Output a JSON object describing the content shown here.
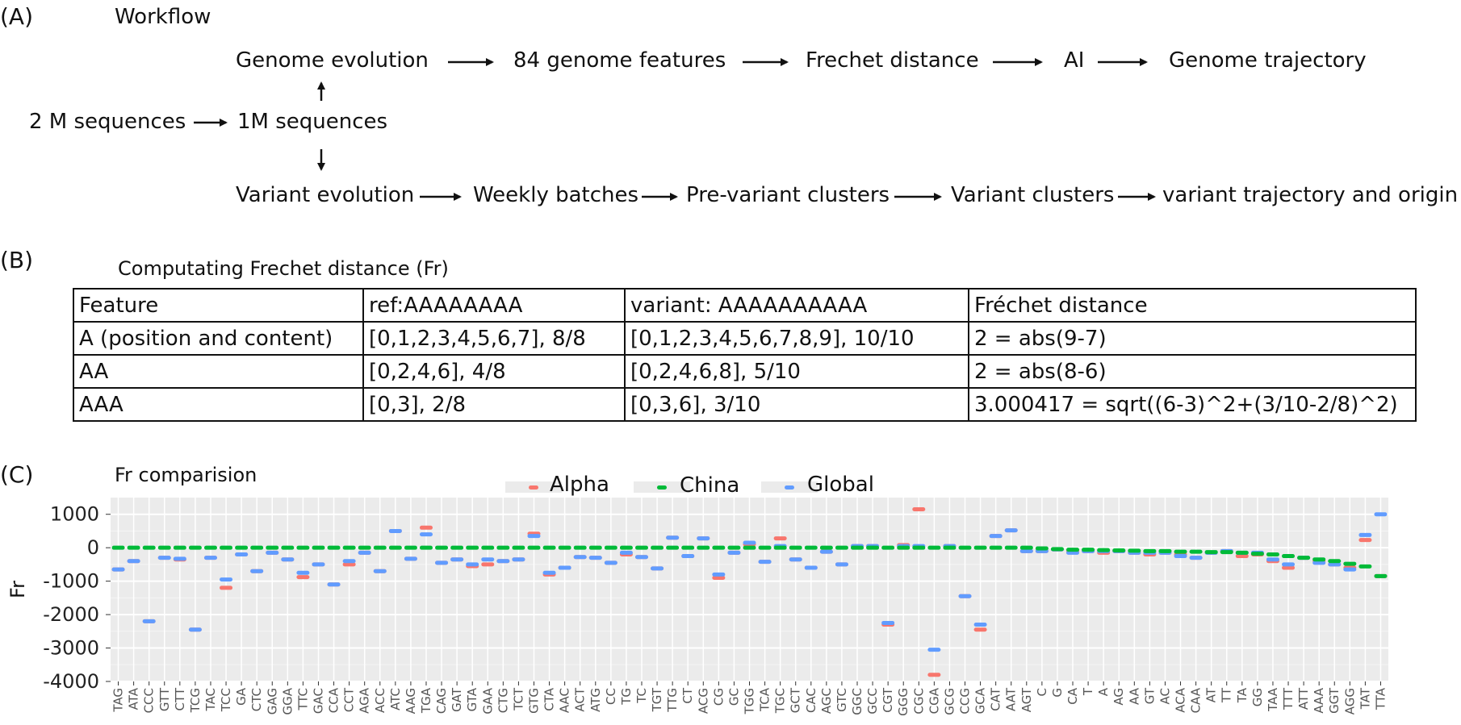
{
  "panelA": {
    "label": "(A)",
    "title": "Workflow",
    "nodes": {
      "two_m": "2 M sequences",
      "one_m": "1M sequences",
      "genome_evolution": "Genome evolution",
      "features84": "84 genome features",
      "frechet": "Frechet distance",
      "ai": "AI",
      "genome_traj": "Genome trajectory",
      "variant_evolution": "Variant evolution",
      "weekly": "Weekly batches",
      "pre_variant": "Pre-variant clusters",
      "variant_clusters": "Variant clusters",
      "variant_traj": "variant trajectory and origin"
    }
  },
  "panelB": {
    "label": "(B)",
    "title": "Computating Frechet distance  (Fr)",
    "table": {
      "header": [
        "Feature",
        "ref:AAAAAAAA",
        "variant: AAAAAAAAAA",
        "Fréchet distance"
      ],
      "rows": [
        [
          "A (position and content)",
          "[0,1,2,3,4,5,6,7], 8/8",
          "[0,1,2,3,4,5,6,7,8,9], 10/10",
          "2 = abs(9-7)"
        ],
        [
          "AA",
          "[0,2,4,6],  4/8",
          "[0,2,4,6,8],  5/10",
          "2 = abs(8-6)"
        ],
        [
          "AAA",
          "[0,3], 2/8",
          "[0,3,6], 3/10",
          "3.000417 = sqrt((6-3)^2+(3/10-2/8)^2)"
        ]
      ]
    }
  },
  "panelC": {
    "label": "(C)",
    "title": "Fr comparision"
  },
  "chart_data": {
    "type": "scatter",
    "ylabel": "Fr",
    "ylim": [
      -4000,
      1500
    ],
    "yticks": [
      1000,
      0,
      -1000,
      -2000,
      -3000,
      -4000
    ],
    "grid": true,
    "legend_position": "top",
    "colors": {
      "Alpha": "#f8766d",
      "China": "#00ba38",
      "Global": "#619cff"
    },
    "categories": [
      "TAG",
      "ATA",
      "CCC",
      "GTT",
      "CTT",
      "TCG",
      "TAC",
      "TCC",
      "GA",
      "CTC",
      "GAG",
      "GGA",
      "TTC",
      "GAC",
      "CCA",
      "CCT",
      "AGA",
      "ACC",
      "ATC",
      "AAG",
      "TGA",
      "CAG",
      "GAT",
      "GTA",
      "GAA",
      "CTG",
      "TCT",
      "GTG",
      "CTA",
      "AAC",
      "ACT",
      "ATG",
      "CC",
      "TG",
      "TC",
      "TGT",
      "TTG",
      "CT",
      "ACG",
      "CG",
      "GC",
      "TGG",
      "TCA",
      "TGC",
      "GCT",
      "CAC",
      "AGC",
      "GTC",
      "GGC",
      "GCC",
      "CGT",
      "GGG",
      "CGC",
      "CGA",
      "GCG",
      "CCG",
      "GCA",
      "CAT",
      "AAT",
      "AGT",
      "C",
      "G",
      "CA",
      "T",
      "A",
      "AG",
      "AA",
      "GT",
      "AC",
      "ACA",
      "CAA",
      "AT",
      "TT",
      "TA",
      "GG",
      "TAA",
      "TTT",
      "ATT",
      "AAA",
      "GGT",
      "AGG",
      "TAT",
      "TTA"
    ],
    "series": [
      {
        "name": "Alpha",
        "values": [
          -650,
          -400,
          -2200,
          -300,
          -350,
          -2450,
          -300,
          -1200,
          -200,
          -700,
          -150,
          -350,
          -880,
          -500,
          -1100,
          -500,
          -150,
          -700,
          500,
          -330,
          600,
          -450,
          -350,
          -550,
          -500,
          -400,
          -350,
          420,
          -800,
          -600,
          -280,
          -300,
          -450,
          -200,
          -280,
          -620,
          300,
          -250,
          280,
          -900,
          -150,
          100,
          -420,
          280,
          -350,
          -600,
          -120,
          -500,
          50,
          50,
          -2300,
          80,
          1150,
          -3800,
          50,
          -1450,
          -2450,
          350,
          520,
          -100,
          -100,
          -50,
          -100,
          -100,
          -150,
          -100,
          -150,
          -200,
          -150,
          -200,
          -300,
          -150,
          -100,
          -250,
          -200,
          -400,
          -600,
          -300,
          -400,
          -500,
          -600,
          230,
          -850
        ]
      },
      {
        "name": "China",
        "values": [
          0,
          0,
          0,
          0,
          0,
          0,
          0,
          0,
          0,
          0,
          0,
          0,
          0,
          0,
          0,
          0,
          0,
          0,
          0,
          0,
          0,
          0,
          0,
          0,
          0,
          0,
          0,
          0,
          0,
          0,
          0,
          0,
          0,
          0,
          0,
          0,
          0,
          0,
          0,
          0,
          0,
          0,
          0,
          0,
          0,
          0,
          0,
          0,
          0,
          0,
          0,
          0,
          0,
          0,
          0,
          0,
          0,
          0,
          0,
          0,
          -20,
          -40,
          -60,
          -60,
          -70,
          -80,
          -90,
          -100,
          -100,
          -120,
          -120,
          -130,
          -130,
          -150,
          -180,
          -200,
          -250,
          -300,
          -350,
          -400,
          -480,
          -560,
          -850
        ]
      },
      {
        "name": "Global",
        "values": [
          -650,
          -400,
          -2200,
          -300,
          -330,
          -2450,
          -300,
          -950,
          -200,
          -700,
          -150,
          -350,
          -750,
          -500,
          -1100,
          -400,
          -150,
          -700,
          500,
          -330,
          400,
          -450,
          -350,
          -500,
          -350,
          -400,
          -350,
          350,
          -750,
          -600,
          -280,
          -300,
          -450,
          -150,
          -280,
          -620,
          300,
          -250,
          280,
          -800,
          -150,
          150,
          -420,
          50,
          -350,
          -600,
          -120,
          -500,
          50,
          50,
          -2250,
          50,
          50,
          -3050,
          50,
          -1450,
          -2300,
          350,
          520,
          -100,
          -100,
          -50,
          -150,
          -100,
          -100,
          -100,
          -150,
          -150,
          -150,
          -250,
          -300,
          -150,
          -100,
          -150,
          -150,
          -350,
          -500,
          -300,
          -450,
          -500,
          -650,
          380,
          1000
        ]
      }
    ]
  }
}
